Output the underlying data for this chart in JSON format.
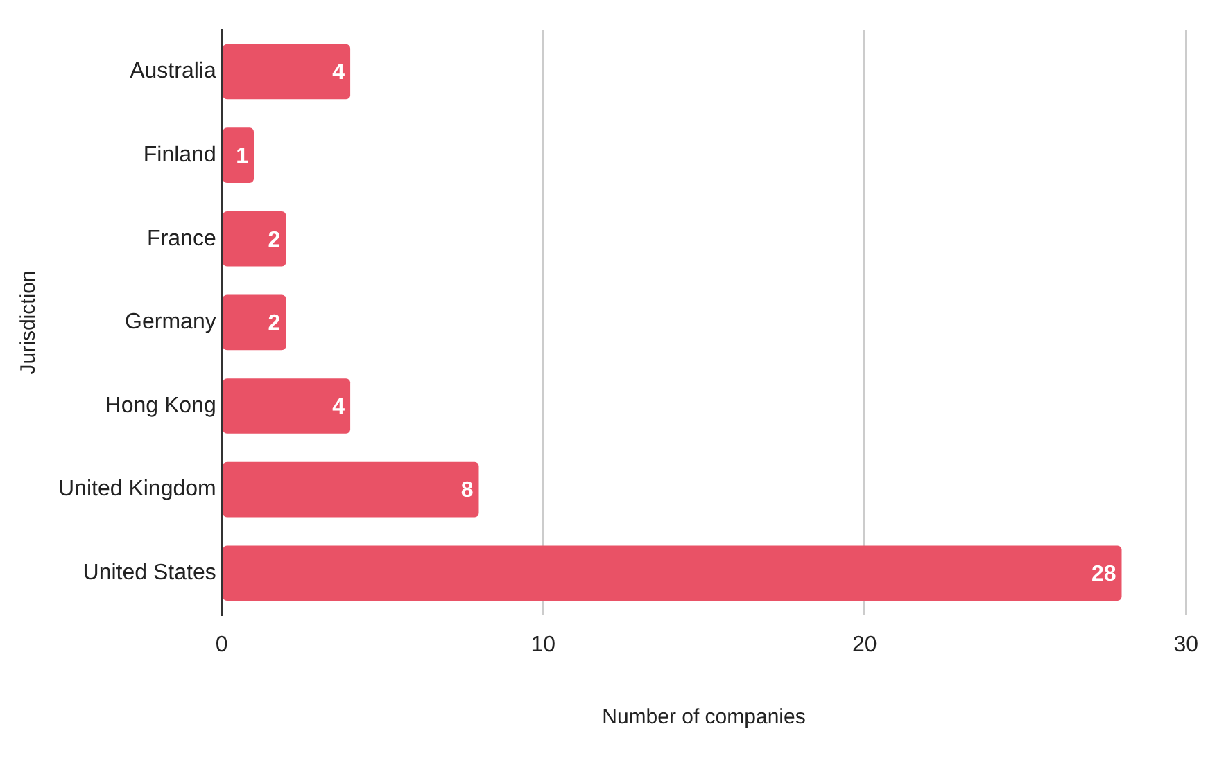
{
  "chart_data": {
    "type": "bar",
    "orientation": "horizontal",
    "xlabel": "Number of companies",
    "ylabel": "Jurisdiction",
    "categories": [
      "Australia",
      "Finland",
      "France",
      "Germany",
      "Hong Kong",
      "United Kingdom",
      "United States"
    ],
    "values": [
      4,
      1,
      2,
      2,
      4,
      8,
      28
    ],
    "color": "#e95266",
    "xlim": [
      0,
      30
    ],
    "xticks": [
      0,
      10,
      20,
      30
    ],
    "grid": "x",
    "data_labels": true
  }
}
